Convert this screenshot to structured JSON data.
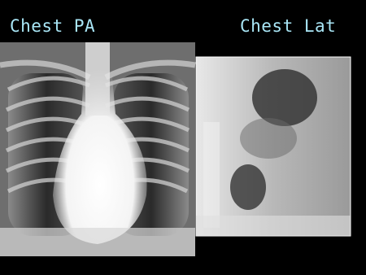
{
  "labels": {
    "left": "Chest PA",
    "right": "Chest Lat"
  }
}
